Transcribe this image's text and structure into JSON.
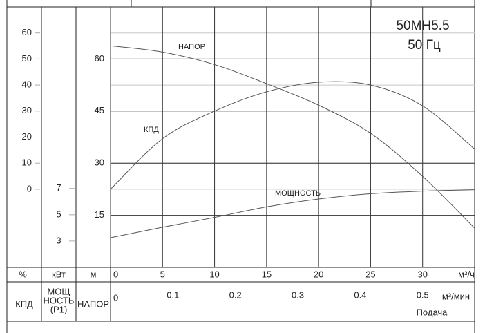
{
  "chart_data": {
    "type": "line",
    "model": "50MH5.5",
    "frequency": "50 Гц",
    "x": [
      0,
      5,
      10,
      15,
      20,
      25,
      30,
      35
    ],
    "xlim": [
      0,
      35
    ],
    "xticks": [
      0,
      5,
      10,
      15,
      20,
      25,
      30
    ],
    "xunit": "м³/ч",
    "x2lim": [
      0,
      0.5833
    ],
    "x2ticks": [
      0,
      0.1,
      0.2,
      0.3,
      0.4,
      0.5
    ],
    "x2unit": "м³/мин",
    "xlabel": "Подача",
    "axes": {
      "y2": {
        "unit": "%",
        "name": "КПД",
        "lim": [
          -30,
          70
        ],
        "ticks": [
          0,
          10,
          20,
          30,
          40,
          50,
          60
        ]
      },
      "y3": {
        "unit": "кВт",
        "name": [
          "МОЩ",
          "НОСТЬ",
          "(Р1)"
        ],
        "lim": [
          1,
          20.8
        ],
        "ticks": [
          3,
          5,
          7
        ]
      },
      "y": {
        "unit": "м",
        "name": "НАПОР",
        "lim": [
          0,
          75
        ],
        "ticks": [
          15,
          30,
          45,
          60
        ]
      }
    },
    "grid": true,
    "series": [
      {
        "name": "НАПОР",
        "axis": "y",
        "color": "#555555",
        "values": [
          63.8,
          62,
          58.4,
          52.9,
          46.7,
          38.6,
          26.2,
          11.3
        ]
      },
      {
        "name": "КПД",
        "axis": "y2",
        "color": "#555555",
        "values": [
          0,
          19.4,
          30,
          37.4,
          41.1,
          40,
          32,
          15.4
        ]
      },
      {
        "name": "МОЩНОСТЬ",
        "axis": "y3",
        "color": "#555555",
        "values": [
          3.26,
          4.05,
          4.8,
          5.6,
          6.2,
          6.6,
          6.8,
          6.9
        ]
      }
    ]
  }
}
